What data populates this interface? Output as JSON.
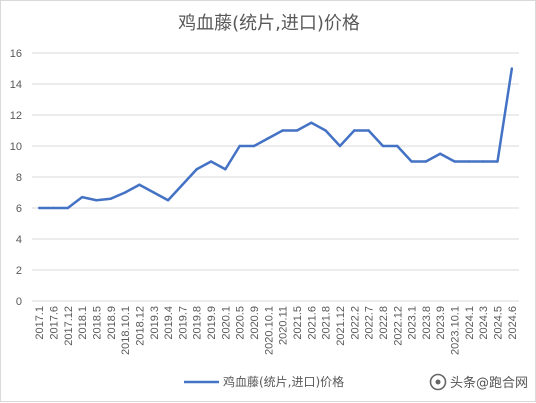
{
  "chart_data": {
    "type": "line",
    "title": "鸡血藤(统片,进口)价格",
    "categories": [
      "2017.1",
      "2017.6",
      "2017.12",
      "2018.1",
      "2018.5",
      "2018.9",
      "2018.10.1",
      "2018.12",
      "2019.3",
      "2019.4",
      "2019.7",
      "2019.8",
      "2019.9",
      "2020.1",
      "2020.5",
      "2020.9",
      "2020.10.1",
      "2020.11",
      "2021.5",
      "2021.6",
      "2021.8",
      "2021.12",
      "2022.2",
      "2022.7",
      "2022.8",
      "2022.12",
      "2023.1",
      "2023.8",
      "2023.9",
      "2023.10.1",
      "2024.1",
      "2024.3",
      "2024.5",
      "2024.6"
    ],
    "series": [
      {
        "name": "鸡血藤(统片,进口)价格",
        "color": "#4472c4",
        "values": [
          6,
          6,
          6,
          6.7,
          6.5,
          6.6,
          7,
          7.5,
          7,
          6.5,
          7.5,
          8.5,
          9,
          8.5,
          10,
          10,
          10.5,
          11,
          11,
          11.5,
          11,
          10,
          11,
          11,
          10,
          10,
          9,
          9,
          9.5,
          9,
          9,
          9,
          9,
          15
        ]
      }
    ],
    "ylim": [
      0,
      16
    ],
    "yticks": [
      0,
      2,
      4,
      6,
      8,
      10,
      12,
      14,
      16
    ],
    "grid": true,
    "legend_position": "bottom"
  },
  "watermark": {
    "text": "头条@跑合网",
    "icon": "toutiao-logo-icon"
  }
}
